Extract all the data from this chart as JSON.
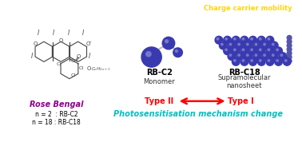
{
  "bg_color": "#ffffff",
  "rose_bengal_label": "Rose Bengal",
  "rb_label_color": "#8B008B",
  "n2_label": "n = 2  : RB-C2",
  "n18_label": "n = 18 : RB-C18",
  "n_label_color": "#000000",
  "rbc2_label": "RB-C2",
  "rbc18_label": "RB-C18",
  "monomer_label": "Monomer",
  "nanosheet_label": "Supramolecular\nnanosheet",
  "type2_label": "Type II",
  "type1_label": "Type I",
  "type_color": "#FF0000",
  "photosens_label": "Photosensitisation mechanism change",
  "photosens_color": "#00BFBF",
  "charge_label": "Charge carrier mobility",
  "charge_color": "#FFD700",
  "molecule_color": "#3A3AB0",
  "highlight_color": "#7777CC",
  "arrow_color": "#FF0000",
  "yellow_arrow_color": "#FFD700",
  "struct_color": "#444444"
}
